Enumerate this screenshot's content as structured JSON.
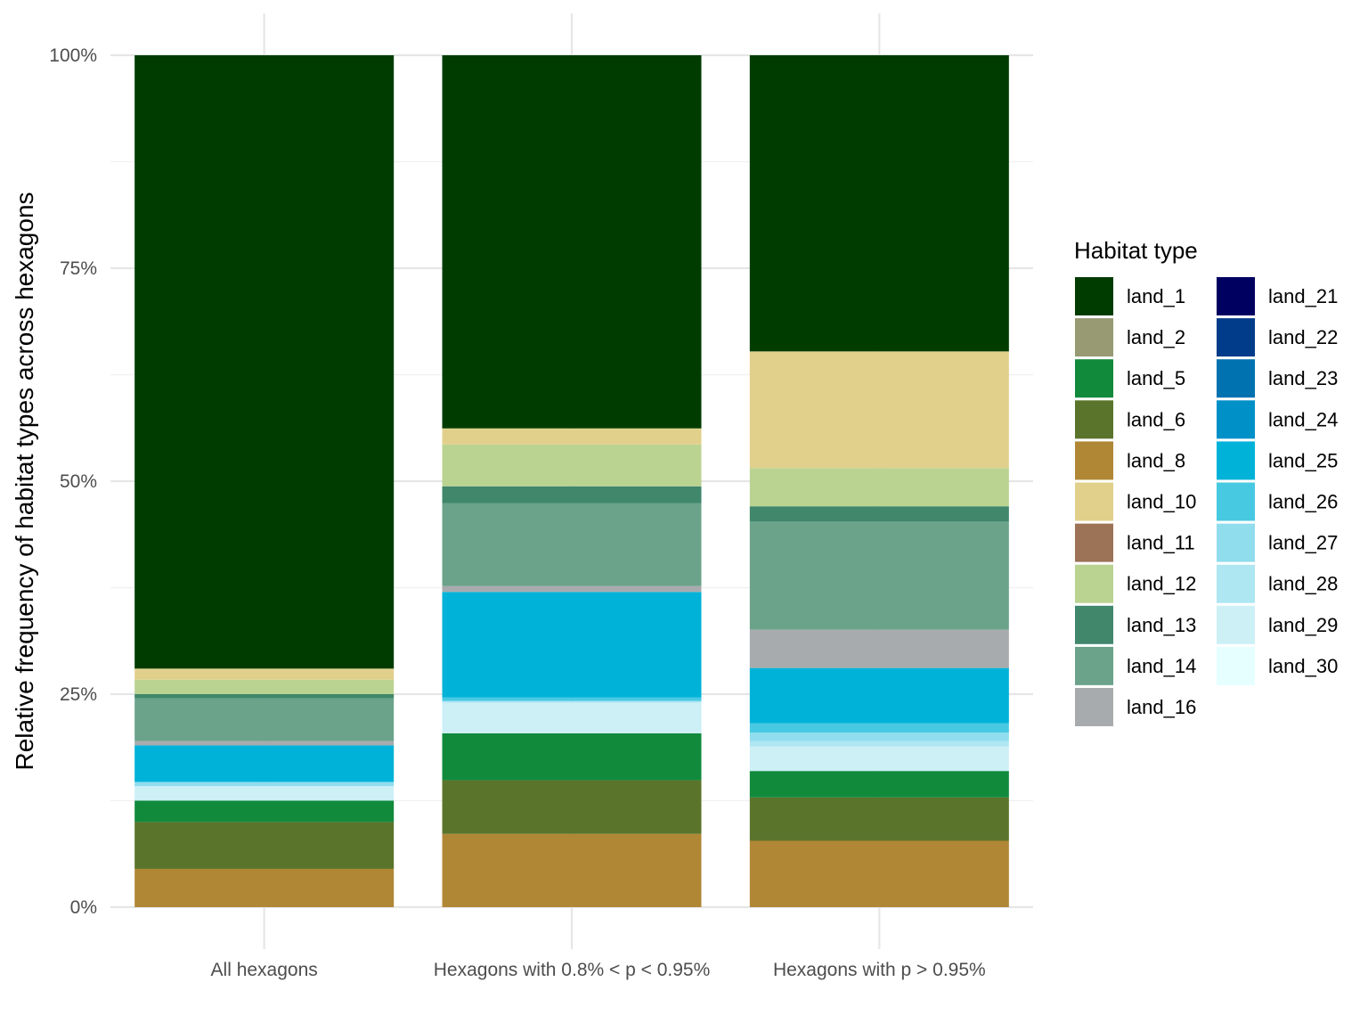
{
  "chart_data": {
    "type": "bar",
    "stacked": true,
    "percent": true,
    "title": "",
    "xlabel": "",
    "ylabel": "Relative frequency of habitat types across hexagons",
    "ylim": [
      0,
      1
    ],
    "yticks": [
      0,
      0.25,
      0.5,
      0.75,
      1
    ],
    "ytick_labels": [
      "0%",
      "25%",
      "50%",
      "75%",
      "100%"
    ],
    "grid": true,
    "legend": {
      "title": "Habitat type",
      "position": "right",
      "columns": 2
    },
    "categories": [
      "All hexagons",
      "Hexagons with 0.8% < p < 0.95%",
      "Hexagons with p > 0.95%"
    ],
    "series": [
      {
        "name": "land_1",
        "color": "#003c00",
        "values": [
          0.72,
          0.438,
          0.348
        ]
      },
      {
        "name": "land_2",
        "color": "#979a72",
        "values": [
          0.0,
          0.0,
          0.0
        ]
      },
      {
        "name": "land_5",
        "color": "#118a3c",
        "values": [
          0.025,
          0.055,
          0.031
        ]
      },
      {
        "name": "land_6",
        "color": "#5b742c",
        "values": [
          0.055,
          0.063,
          0.051
        ]
      },
      {
        "name": "land_8",
        "color": "#b08735",
        "values": [
          0.045,
          0.086,
          0.078
        ]
      },
      {
        "name": "land_10",
        "color": "#e1d08b",
        "values": [
          0.013,
          0.019,
          0.137
        ]
      },
      {
        "name": "land_11",
        "color": "#9d7357",
        "values": [
          0.0,
          0.0,
          0.0
        ]
      },
      {
        "name": "land_12",
        "color": "#bad391",
        "values": [
          0.017,
          0.049,
          0.045
        ]
      },
      {
        "name": "land_13",
        "color": "#40876c",
        "values": [
          0.005,
          0.02,
          0.018
        ]
      },
      {
        "name": "land_14",
        "color": "#6ba38a",
        "values": [
          0.05,
          0.097,
          0.127
        ]
      },
      {
        "name": "land_16",
        "color": "#a8abad",
        "values": [
          0.005,
          0.007,
          0.045
        ]
      },
      {
        "name": "land_21",
        "color": "#000060",
        "values": [
          0.0,
          0.0,
          0.0
        ]
      },
      {
        "name": "land_22",
        "color": "#003c8a",
        "values": [
          0.0,
          0.0,
          0.0
        ]
      },
      {
        "name": "land_23",
        "color": "#0072b0",
        "values": [
          0.0,
          0.0,
          0.0
        ]
      },
      {
        "name": "land_24",
        "color": "#0090c8",
        "values": [
          0.0,
          0.0,
          0.0
        ]
      },
      {
        "name": "land_25",
        "color": "#00b2d8",
        "values": [
          0.043,
          0.124,
          0.065
        ]
      },
      {
        "name": "land_26",
        "color": "#48c9e2",
        "values": [
          0.0,
          0.004,
          0.011
        ]
      },
      {
        "name": "land_27",
        "color": "#90ddee",
        "values": [
          0.005,
          0.0,
          0.01
        ]
      },
      {
        "name": "land_28",
        "color": "#aee6f2",
        "values": [
          0.0,
          0.002,
          0.006
        ]
      },
      {
        "name": "land_29",
        "color": "#ccf0f6",
        "values": [
          0.017,
          0.036,
          0.029
        ]
      },
      {
        "name": "land_30",
        "color": "#e6ffff",
        "values": [
          0.0,
          0.0,
          0.0
        ]
      }
    ],
    "stack_order_bottom_to_top": [
      "land_8",
      "land_6",
      "land_5",
      "land_30",
      "land_29",
      "land_28",
      "land_27",
      "land_26",
      "land_25",
      "land_24",
      "land_23",
      "land_22",
      "land_21",
      "land_2",
      "land_16",
      "land_14",
      "land_13",
      "land_12",
      "land_11",
      "land_10",
      "land_1"
    ]
  }
}
